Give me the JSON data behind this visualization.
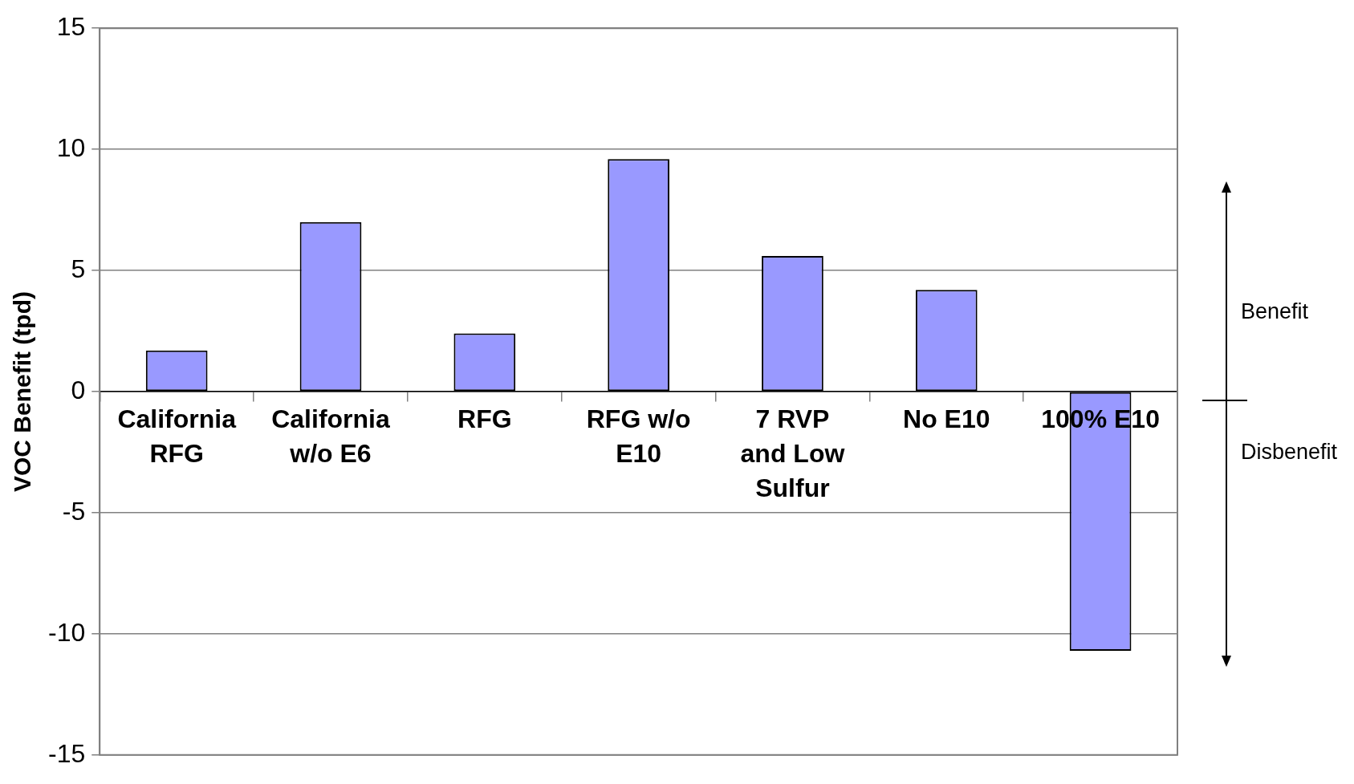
{
  "chart_data": {
    "type": "bar",
    "ylabel": "VOC Benefit (tpd)",
    "categories": [
      "California RFG",
      "California w/o E6",
      "RFG",
      "RFG w/o E10",
      "7 RVP and Low Sulfur",
      "No E10",
      "100% E10"
    ],
    "values": [
      1.7,
      7.0,
      2.4,
      9.6,
      5.6,
      4.2,
      -10.7
    ],
    "color": "#9999ff",
    "ylim": [
      -15,
      15
    ],
    "yticks": [
      -15,
      -10,
      -5,
      0,
      5,
      10,
      15
    ],
    "grid": "y",
    "legend": false,
    "annotations": [
      "Benefit",
      "Disbenefit"
    ]
  }
}
